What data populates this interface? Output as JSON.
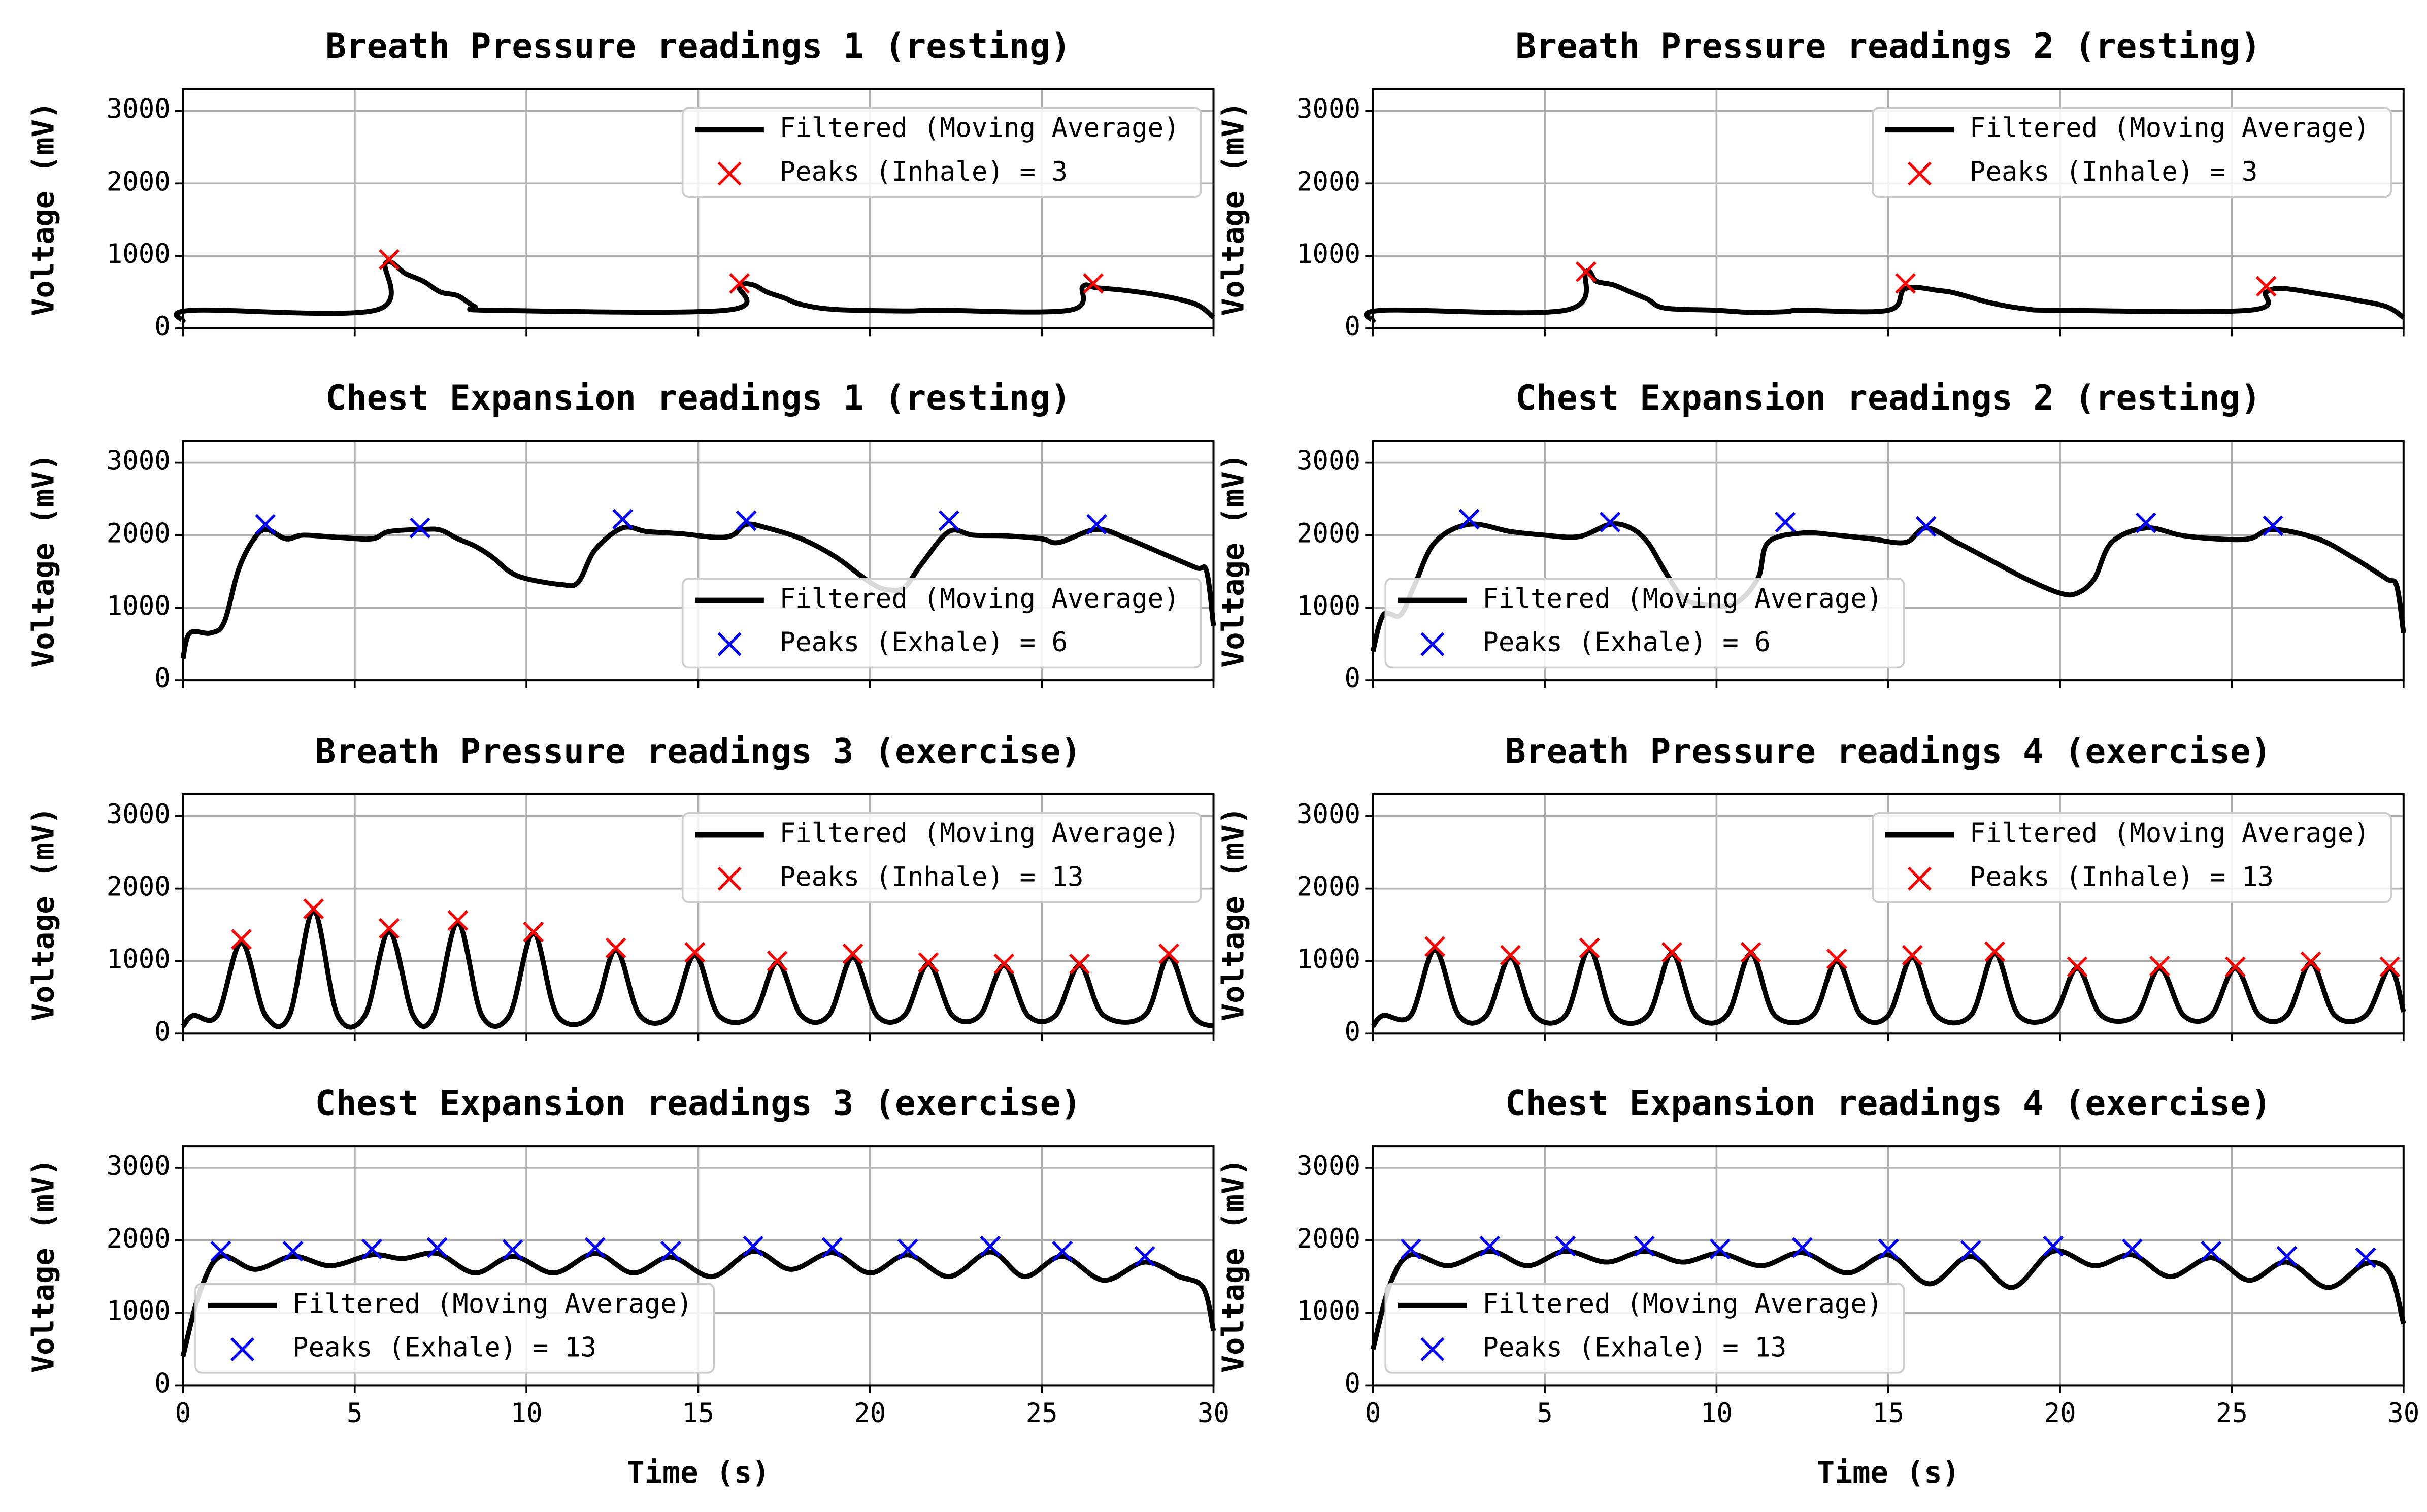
{
  "chart_data": [
    {
      "type": "line",
      "title": "Breath Pressure readings 1 (resting)",
      "y_label": "Voltage (mV)",
      "xlim": [
        0,
        30
      ],
      "ylim": [
        0,
        3300
      ],
      "xticks": [
        0,
        5,
        10,
        15,
        20,
        25,
        30
      ],
      "yticks": [
        0,
        1000,
        2000,
        3000
      ],
      "grid": true,
      "legend": "upper right",
      "series": [
        {
          "name": "Filtered (Moving Average)",
          "color": "#000000",
          "x": [
            0,
            0.3,
            5.6,
            5.9,
            6.5,
            7,
            7.5,
            8,
            8.5,
            9,
            15.8,
            16.2,
            16.6,
            17,
            17.5,
            18,
            19,
            21,
            22,
            25.8,
            26.2,
            26.6,
            27.5,
            28.5,
            29.5,
            30
          ],
          "values": [
            100,
            250,
            250,
            900,
            750,
            650,
            500,
            450,
            300,
            250,
            250,
            580,
            600,
            500,
            420,
            330,
            260,
            240,
            250,
            250,
            580,
            560,
            520,
            450,
            330,
            150
          ]
        },
        {
          "name": "Peaks (Inhale) = 3",
          "color": "#ff0000",
          "marker": "x",
          "x": [
            6.0,
            16.2,
            26.5
          ],
          "values": [
            950,
            620,
            620
          ]
        }
      ]
    },
    {
      "type": "line",
      "title": "Breath Pressure readings 2 (resting)",
      "y_label": "Voltage (mV)",
      "xlim": [
        0,
        30
      ],
      "ylim": [
        0,
        3300
      ],
      "xticks": [
        0,
        5,
        10,
        15,
        20,
        25,
        30
      ],
      "yticks": [
        0,
        1000,
        2000,
        3000
      ],
      "grid": true,
      "legend": "upper right",
      "series": [
        {
          "name": "Filtered (Moving Average)",
          "color": "#000000",
          "x": [
            0,
            0.3,
            5.6,
            6.2,
            6.5,
            7,
            7.5,
            8,
            8.5,
            10,
            11,
            12,
            12.5,
            15.0,
            15.5,
            16.5,
            17,
            18,
            19,
            20,
            25.5,
            26,
            26.5,
            27.5,
            28.5,
            29.5,
            30
          ],
          "values": [
            100,
            250,
            250,
            780,
            650,
            600,
            500,
            400,
            280,
            250,
            220,
            230,
            250,
            250,
            550,
            520,
            480,
            350,
            270,
            250,
            250,
            500,
            550,
            480,
            400,
            300,
            150
          ]
        },
        {
          "name": "Peaks (Inhale) = 3",
          "color": "#ff0000",
          "marker": "x",
          "x": [
            6.2,
            15.5,
            26.0
          ],
          "values": [
            780,
            620,
            580
          ]
        }
      ]
    },
    {
      "type": "line",
      "title": "Chest Expansion readings 1 (resting)",
      "y_label": "Voltage (mV)",
      "xlim": [
        0,
        30
      ],
      "ylim": [
        0,
        3300
      ],
      "xticks": [
        0,
        5,
        10,
        15,
        20,
        25,
        30
      ],
      "yticks": [
        0,
        1000,
        2000,
        3000
      ],
      "grid": true,
      "legend": "lower right",
      "series": [
        {
          "name": "Filtered (Moving Average)",
          "color": "#000000",
          "x": [
            0,
            0.2,
            0.8,
            1.2,
            1.6,
            2,
            2.4,
            3,
            3.5,
            4.5,
            5.5,
            6,
            7,
            7.5,
            8,
            8.5,
            9,
            9.5,
            10,
            11,
            11.5,
            12,
            12.8,
            13.5,
            14.5,
            15.5,
            16,
            16.4,
            17,
            18,
            19,
            20,
            20.5,
            21,
            21.5,
            22.3,
            23,
            24,
            25,
            25.5,
            26.6,
            27.5,
            28.5,
            29.5,
            29.8,
            30
          ],
          "values": [
            300,
            650,
            650,
            800,
            1500,
            1900,
            2080,
            1950,
            2000,
            1970,
            1950,
            2050,
            2080,
            2070,
            1950,
            1850,
            1700,
            1500,
            1400,
            1320,
            1350,
            1800,
            2100,
            2050,
            2020,
            1970,
            2000,
            2150,
            2100,
            1950,
            1700,
            1350,
            1250,
            1280,
            1600,
            2050,
            2000,
            1990,
            1950,
            1900,
            2080,
            1950,
            1750,
            1550,
            1500,
            750
          ]
        },
        {
          "name": "Peaks (Exhale) = 6",
          "color": "#0000ff",
          "marker": "x",
          "x": [
            2.4,
            6.9,
            12.8,
            16.4,
            22.3,
            26.6
          ],
          "values": [
            2150,
            2100,
            2220,
            2200,
            2200,
            2150
          ]
        }
      ]
    },
    {
      "type": "line",
      "title": "Chest Expansion readings 2 (resting)",
      "y_label": "Voltage (mV)",
      "xlim": [
        0,
        30
      ],
      "ylim": [
        0,
        3300
      ],
      "xticks": [
        0,
        5,
        10,
        15,
        20,
        25,
        30
      ],
      "yticks": [
        0,
        1000,
        2000,
        3000
      ],
      "grid": true,
      "legend": "lower left",
      "series": [
        {
          "name": "Filtered (Moving Average)",
          "color": "#000000",
          "x": [
            0,
            0.3,
            0.8,
            1.2,
            1.8,
            2.8,
            4,
            5,
            6,
            6.9,
            7.5,
            8,
            8.5,
            9,
            9.5,
            10.5,
            11.2,
            11.5,
            12.5,
            13.5,
            14.5,
            15.5,
            16.1,
            17,
            18,
            19,
            20,
            20.5,
            21,
            21.5,
            22.5,
            23.5,
            24.5,
            25.5,
            26.2,
            27.5,
            28.5,
            29.5,
            29.8,
            30
          ],
          "values": [
            400,
            900,
            900,
            1300,
            1900,
            2150,
            2050,
            2000,
            1980,
            2150,
            2100,
            1900,
            1500,
            1150,
            1050,
            1050,
            1400,
            1900,
            2030,
            2000,
            1950,
            1900,
            2100,
            1900,
            1650,
            1400,
            1200,
            1200,
            1400,
            1900,
            2100,
            2000,
            1950,
            1950,
            2080,
            1950,
            1700,
            1400,
            1300,
            650
          ]
        },
        {
          "name": "Peaks (Exhale) = 6",
          "color": "#0000ff",
          "marker": "x",
          "x": [
            2.8,
            6.9,
            12.0,
            16.1,
            22.5,
            26.2
          ],
          "values": [
            2220,
            2180,
            2180,
            2120,
            2170,
            2130
          ]
        }
      ]
    },
    {
      "type": "line",
      "title": "Breath Pressure readings 3 (exercise)",
      "y_label": "Voltage (mV)",
      "xlim": [
        0,
        30
      ],
      "ylim": [
        0,
        3300
      ],
      "xticks": [
        0,
        5,
        10,
        15,
        20,
        25,
        30
      ],
      "yticks": [
        0,
        1000,
        2000,
        3000
      ],
      "grid": true,
      "legend": "upper right",
      "series": [
        {
          "name": "Filtered (Moving Average)",
          "color": "#000000",
          "x": [
            0,
            0.3,
            1.0,
            1.7,
            2.4,
            3.1,
            3.8,
            4.5,
            5.3,
            6.0,
            6.7,
            7.3,
            8.0,
            8.7,
            9.5,
            10.2,
            10.9,
            11.9,
            12.6,
            13.3,
            14.2,
            14.9,
            15.6,
            16.6,
            17.3,
            18.0,
            18.8,
            19.5,
            20.2,
            21.0,
            21.7,
            22.4,
            23.2,
            23.9,
            24.6,
            25.4,
            26.1,
            26.8,
            28.0,
            28.7,
            29.4,
            30
          ],
          "values": [
            100,
            250,
            250,
            1250,
            250,
            250,
            1680,
            250,
            250,
            1400,
            250,
            250,
            1520,
            250,
            250,
            1380,
            250,
            250,
            1150,
            250,
            250,
            1080,
            250,
            250,
            980,
            250,
            250,
            1050,
            250,
            250,
            960,
            250,
            250,
            940,
            250,
            250,
            940,
            250,
            250,
            1060,
            250,
            100
          ]
        },
        {
          "name": "Peaks (Inhale) = 13",
          "color": "#ff0000",
          "marker": "x",
          "x": [
            1.7,
            3.8,
            6.0,
            8.0,
            10.2,
            12.6,
            14.9,
            17.3,
            19.5,
            21.7,
            23.9,
            26.1,
            28.7
          ],
          "values": [
            1300,
            1720,
            1450,
            1560,
            1400,
            1180,
            1120,
            1000,
            1100,
            980,
            960,
            960,
            1100
          ]
        }
      ]
    },
    {
      "type": "line",
      "title": "Breath Pressure readings 4 (exercise)",
      "y_label": "Voltage (mV)",
      "xlim": [
        0,
        30
      ],
      "ylim": [
        0,
        3300
      ],
      "xticks": [
        0,
        5,
        10,
        15,
        20,
        25,
        30
      ],
      "yticks": [
        0,
        1000,
        2000,
        3000
      ],
      "grid": true,
      "legend": "upper right",
      "series": [
        {
          "name": "Filtered (Moving Average)",
          "color": "#000000",
          "x": [
            0,
            0.3,
            1.1,
            1.8,
            2.5,
            3.3,
            4.0,
            4.7,
            5.6,
            6.3,
            7.0,
            8.0,
            8.7,
            9.4,
            10.3,
            11.0,
            11.7,
            12.8,
            13.5,
            14.2,
            15.0,
            15.7,
            16.4,
            17.4,
            18.1,
            18.8,
            19.8,
            20.5,
            21.2,
            22.2,
            22.9,
            23.6,
            24.4,
            25.1,
            25.8,
            26.6,
            27.3,
            28.0,
            28.9,
            29.6,
            30
          ],
          "values": [
            100,
            250,
            250,
            1150,
            250,
            250,
            1050,
            250,
            250,
            1150,
            250,
            250,
            1100,
            250,
            250,
            1100,
            250,
            250,
            1000,
            250,
            250,
            1050,
            250,
            250,
            1100,
            250,
            250,
            900,
            250,
            250,
            900,
            250,
            250,
            900,
            250,
            250,
            970,
            250,
            250,
            900,
            300
          ]
        },
        {
          "name": "Peaks (Inhale) = 13",
          "color": "#ff0000",
          "marker": "x",
          "x": [
            1.8,
            4.0,
            6.3,
            8.7,
            11.0,
            13.5,
            15.7,
            18.1,
            20.5,
            22.9,
            25.1,
            27.3,
            29.6
          ],
          "values": [
            1200,
            1080,
            1180,
            1120,
            1120,
            1030,
            1080,
            1130,
            920,
            930,
            920,
            990,
            920
          ]
        }
      ]
    },
    {
      "type": "line",
      "title": "Chest Expansion readings 3 (exercise)",
      "x_label": "Time (s)",
      "y_label": "Voltage (mV)",
      "xlim": [
        0,
        30
      ],
      "ylim": [
        0,
        3300
      ],
      "xticks": [
        0,
        5,
        10,
        15,
        20,
        25,
        30
      ],
      "yticks": [
        0,
        1000,
        2000,
        3000
      ],
      "grid": true,
      "legend": "lower left",
      "series": [
        {
          "name": "Filtered (Moving Average)",
          "color": "#000000",
          "x": [
            0,
            0.5,
            1.1,
            2.1,
            3.2,
            4.3,
            5.5,
            6.4,
            7.4,
            8.5,
            9.6,
            10.8,
            12.0,
            13.1,
            14.2,
            15.4,
            16.6,
            17.7,
            18.9,
            20.0,
            21.1,
            22.3,
            23.5,
            24.5,
            25.6,
            26.8,
            28.0,
            29.0,
            29.7,
            30
          ],
          "values": [
            400,
            1300,
            1780,
            1600,
            1780,
            1650,
            1800,
            1750,
            1820,
            1550,
            1780,
            1550,
            1820,
            1550,
            1770,
            1500,
            1850,
            1600,
            1830,
            1550,
            1800,
            1500,
            1840,
            1500,
            1780,
            1450,
            1700,
            1500,
            1350,
            750
          ]
        },
        {
          "name": "Peaks (Exhale) = 13",
          "color": "#0000ff",
          "marker": "x",
          "x": [
            1.1,
            3.2,
            5.5,
            7.4,
            9.6,
            12.0,
            14.2,
            16.6,
            18.9,
            21.1,
            23.5,
            25.6,
            28.0
          ],
          "values": [
            1850,
            1850,
            1880,
            1900,
            1870,
            1900,
            1850,
            1920,
            1900,
            1880,
            1920,
            1850,
            1780
          ]
        }
      ]
    },
    {
      "type": "line",
      "title": "Chest Expansion readings 4 (exercise)",
      "x_label": "Time (s)",
      "y_label": "Voltage (mV)",
      "xlim": [
        0,
        30
      ],
      "ylim": [
        0,
        3300
      ],
      "xticks": [
        0,
        5,
        10,
        15,
        20,
        25,
        30
      ],
      "yticks": [
        0,
        1000,
        2000,
        3000
      ],
      "grid": true,
      "legend": "lower left",
      "series": [
        {
          "name": "Filtered (Moving Average)",
          "color": "#000000",
          "x": [
            0,
            0.5,
            1.1,
            2.2,
            3.4,
            4.5,
            5.6,
            6.8,
            7.9,
            9.0,
            10.1,
            11.3,
            12.5,
            13.8,
            15.0,
            16.2,
            17.4,
            18.6,
            19.8,
            21.0,
            22.1,
            23.2,
            24.4,
            25.5,
            26.6,
            27.8,
            28.9,
            29.6,
            30
          ],
          "values": [
            500,
            1400,
            1800,
            1650,
            1850,
            1650,
            1850,
            1700,
            1850,
            1700,
            1820,
            1650,
            1830,
            1550,
            1800,
            1400,
            1780,
            1350,
            1850,
            1650,
            1800,
            1500,
            1760,
            1450,
            1700,
            1350,
            1680,
            1550,
            850
          ]
        },
        {
          "name": "Peaks (Exhale) = 13",
          "color": "#0000ff",
          "marker": "x",
          "x": [
            1.1,
            3.4,
            5.6,
            7.9,
            10.1,
            12.5,
            15.0,
            17.4,
            19.8,
            22.1,
            24.4,
            26.6,
            28.9
          ],
          "values": [
            1880,
            1920,
            1920,
            1920,
            1880,
            1900,
            1880,
            1860,
            1920,
            1880,
            1850,
            1780,
            1760
          ]
        }
      ]
    }
  ]
}
